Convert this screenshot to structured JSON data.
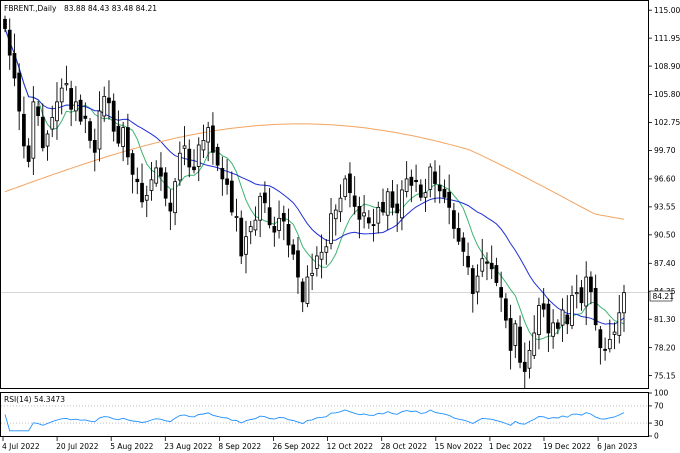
{
  "header": {
    "symbol": "FBRENT.,Daily",
    "ohlc": "83.88 84.43 83.48 84.21"
  },
  "rsi_header": "RSI(14) 54.3473",
  "current_price_label": "84.21",
  "colors": {
    "ma_fast": "#3cb371",
    "ma_mid": "#1f2fd6",
    "ma_slow": "#f4a460",
    "rsi": "#1e90ff",
    "candle": "#000000",
    "grid": "#c8c8c8"
  },
  "chart_data": [
    {
      "type": "candlestick",
      "name": "price",
      "ylim": [
        73.8,
        116.0
      ],
      "y_ticks": [
        "115.00",
        "111.95",
        "108.90",
        "105.80",
        "102.75",
        "99.70",
        "96.60",
        "93.55",
        "90.50",
        "87.40",
        "84.35",
        "81.30",
        "78.20",
        "75.15"
      ],
      "x_tick_labels": [
        "4 Jul 2022",
        "20 Jul 2022",
        "5 Aug 2022",
        "23 Aug 2022",
        "8 Sep 2022",
        "26 Sep 2022",
        "12 Oct 2022",
        "28 Oct 2022",
        "15 Nov 2022",
        "1 Dec 2022",
        "19 Dec 2022",
        "6 Jan 2023"
      ],
      "close": [
        113.0,
        110.1,
        107.6,
        104.0,
        100.2,
        98.5,
        105.0,
        103.5,
        100.0,
        101.5,
        103.3,
        105.0,
        106.5,
        107.0,
        104.2,
        105.0,
        102.9,
        103.2,
        100.8,
        99.5,
        104.0,
        105.6,
        104.9,
        101.8,
        100.5,
        102.2,
        99.0,
        97.1,
        96.3,
        94.1,
        94.8,
        96.5,
        97.8,
        96.9,
        94.5,
        93.1,
        96.3,
        99.4,
        100.2,
        97.9,
        97.6,
        100.3,
        100.8,
        102.2,
        99.5,
        98.1,
        96.6,
        96.0,
        93.0,
        92.5,
        88.2,
        90.3,
        91.4,
        92.1,
        94.7,
        94.0,
        91.6,
        90.8,
        92.3,
        92.0,
        89.4,
        88.4,
        85.9,
        83.2,
        85.9,
        86.3,
        88.2,
        88.6,
        89.2,
        92.8,
        93.2,
        94.5,
        96.6,
        95.1,
        93.6,
        92.2,
        92.9,
        91.8,
        91.6,
        93.5,
        93.0,
        95.2,
        93.5,
        92.9,
        95.4,
        96.6,
        95.9,
        96.3,
        94.6,
        95.1,
        97.9,
        96.1,
        95.3,
        94.6,
        93.5,
        91.2,
        89.8,
        88.7,
        87.0,
        84.1,
        86.0,
        87.9,
        87.4,
        86.8,
        85.3,
        83.7,
        81.2,
        77.9,
        80.8,
        76.6,
        75.6,
        77.9,
        79.8,
        82.8,
        82.4,
        79.8,
        80.9,
        80.3,
        82.3,
        80.8,
        83.9,
        84.2,
        83.1,
        85.9,
        84.3,
        80.7,
        78.2,
        77.9,
        79.1,
        79.9,
        82.0,
        84.2
      ]
    },
    {
      "type": "line",
      "name": "RSI(14)",
      "ylim": [
        0,
        100
      ],
      "y_ticks": [
        "100",
        "70",
        "30",
        "0"
      ],
      "value": 54.3473
    }
  ]
}
